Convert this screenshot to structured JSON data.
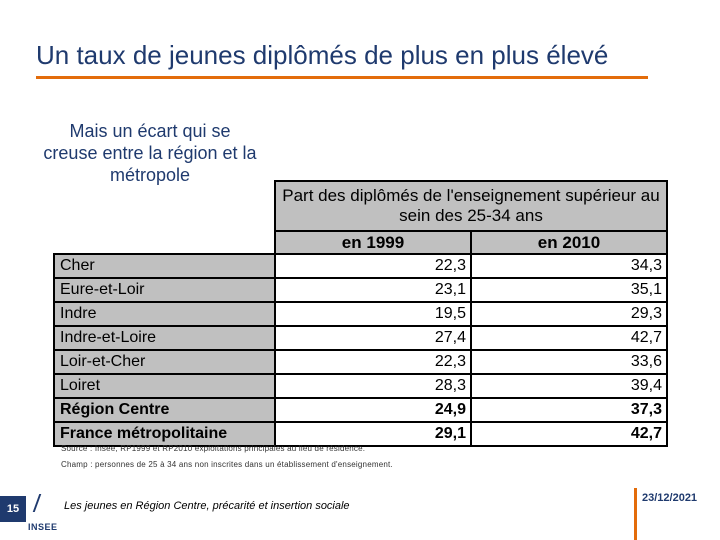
{
  "slide": {
    "title": "Un taux de jeunes diplômés de plus en plus élevé",
    "subtitle": "Mais un écart qui se creuse entre la région et la métropole",
    "accent_color": "#e36c0a",
    "title_color": "#1f3a6e"
  },
  "table": {
    "header": "Part des diplômés de l'enseignement supérieur au sein des 25-34 ans",
    "columns": [
      "en 1999",
      "en 2010"
    ],
    "rows": [
      {
        "name": "Cher",
        "v1999": "22,3",
        "v2010": "34,3"
      },
      {
        "name": "Eure-et-Loir",
        "v1999": "23,1",
        "v2010": "35,1"
      },
      {
        "name": "Indre",
        "v1999": "19,5",
        "v2010": "29,3"
      },
      {
        "name": "Indre-et-Loire",
        "v1999": "27,4",
        "v2010": "42,7"
      },
      {
        "name": "Loir-et-Cher",
        "v1999": "22,3",
        "v2010": "33,6"
      },
      {
        "name": "Loiret",
        "v1999": "28,3",
        "v2010": "39,4"
      }
    ],
    "totals": [
      {
        "name": "Région Centre",
        "v1999": "24,9",
        "v2010": "37,3"
      },
      {
        "name": "France métropolitaine",
        "v1999": "29,1",
        "v2010": "42,7"
      }
    ]
  },
  "notes": {
    "source": "Source : Insee, RP1999 et RP2010 exploitations principales au lieu de résidence.",
    "scope": "Champ : personnes de 25 à 34 ans non inscrites dans un établissement d'enseignement."
  },
  "footer": {
    "page_number": "15",
    "logo_text": "INSEE",
    "caption": "Les jeunes en Région Centre, précarité et insertion sociale",
    "date": "23/12/2021"
  }
}
